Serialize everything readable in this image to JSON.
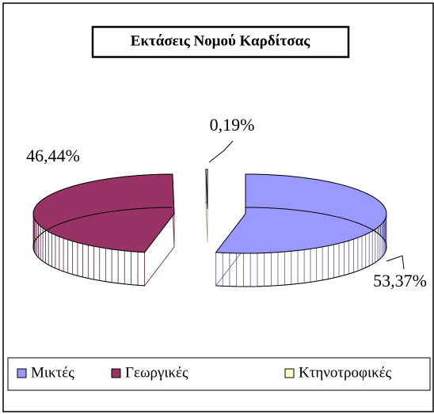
{
  "chart_data": {
    "type": "pie3d",
    "title": "Εκτάσεις Νομού Καρδίτσας",
    "categories": [
      "Μικτές",
      "Γεωργικές",
      "Κτηνοτροφικές"
    ],
    "values": [
      53.37,
      46.44,
      0.19
    ],
    "value_labels": [
      "53,37%",
      "46,44%",
      "0,19%"
    ],
    "colors": [
      "#9999ff",
      "#993366",
      "#ffffcc"
    ],
    "legend": "bottom"
  }
}
